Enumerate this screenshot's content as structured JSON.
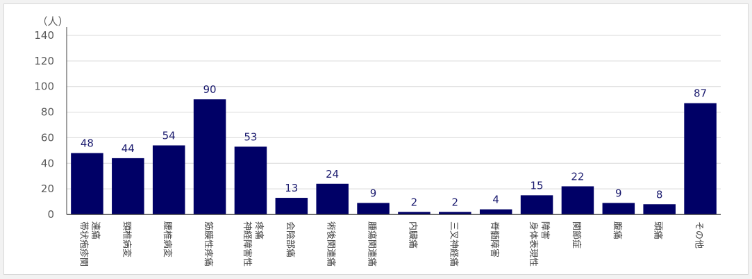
{
  "chart_data": {
    "type": "bar",
    "unit_label": "（人）",
    "categories": [
      [
        "帯状疱疹関",
        "連痛"
      ],
      [
        "頸椎病変"
      ],
      [
        "腰椎病変"
      ],
      [
        "筋膜性疼痛"
      ],
      [
        "神経障害性",
        "疼痛"
      ],
      [
        "会陰部痛"
      ],
      [
        "術後関連痛"
      ],
      [
        "腫瘍関連痛"
      ],
      [
        "内臓痛"
      ],
      [
        "三叉神経痛"
      ],
      [
        "脊髄障害"
      ],
      [
        "身体表現性",
        "障害"
      ],
      [
        "関節症"
      ],
      [
        "腹痛"
      ],
      [
        "頭痛"
      ],
      [
        "その他"
      ]
    ],
    "values": [
      48,
      44,
      54,
      90,
      53,
      13,
      24,
      9,
      2,
      2,
      4,
      15,
      22,
      9,
      8,
      87
    ],
    "ylim": [
      0,
      140
    ],
    "yticks": [
      0,
      20,
      40,
      60,
      80,
      100,
      120,
      140
    ],
    "grid": true,
    "bar_color": "#000066",
    "label_color": "#1a1a6e"
  }
}
